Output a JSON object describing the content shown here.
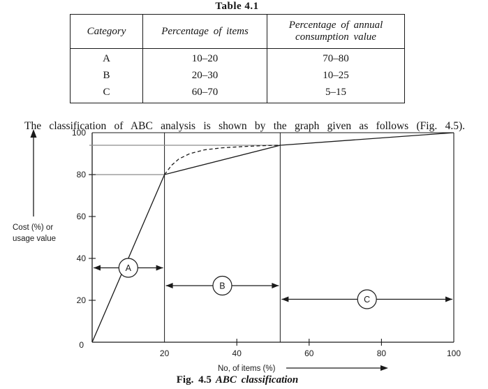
{
  "colors": {
    "ink": "#1a1a1a",
    "guide_gray": "#8c8c8c"
  },
  "table_section": {
    "title": "Table 4.1",
    "headers": [
      "Category",
      "Percentage of items",
      "Percentage of annual consumption value"
    ],
    "rows": [
      [
        "A",
        "10–20",
        "70–80"
      ],
      [
        "B",
        "20–30",
        "10–25"
      ],
      [
        "C",
        "60–70",
        "5–15"
      ]
    ]
  },
  "paragraph": "The classification of ABC analysis is shown by the graph given as follows (Fig. 4.5).",
  "chart_data": {
    "type": "line",
    "title": "",
    "xlabel": "No, of items (%)",
    "ylabel_lines": [
      "Cost (%) or",
      "usage value"
    ],
    "xlim": [
      0,
      100
    ],
    "ylim": [
      0,
      100
    ],
    "x_ticks": [
      0,
      20,
      40,
      60,
      80,
      100
    ],
    "y_ticks": [
      0,
      20,
      40,
      60,
      80,
      100
    ],
    "origin_label": "0",
    "grid": "partial",
    "vertical_guides": [
      20,
      52
    ],
    "horizontal_guides": [
      {
        "y": 94,
        "x_end": 52
      },
      {
        "y": 80,
        "x_end": 20
      }
    ],
    "series": [
      {
        "name": "cumulative-cost-line",
        "style": "solid",
        "points": [
          [
            0,
            0
          ],
          [
            20,
            80
          ],
          [
            52,
            94
          ],
          [
            100,
            100
          ]
        ]
      },
      {
        "name": "cumulative-cost-curve",
        "style": "dashed",
        "points": [
          [
            20,
            80
          ],
          [
            22,
            84.5
          ],
          [
            24,
            87.5
          ],
          [
            27,
            90
          ],
          [
            31,
            91.8
          ],
          [
            36,
            92.8
          ],
          [
            42,
            93.4
          ],
          [
            47,
            93.8
          ],
          [
            52,
            94
          ]
        ]
      }
    ],
    "regions": [
      {
        "label": "A",
        "from": 0,
        "to": 20,
        "arrow_y": 35.5
      },
      {
        "label": "B",
        "from": 20,
        "to": 52,
        "arrow_y": 27
      },
      {
        "label": "C",
        "from": 52,
        "to": 100,
        "arrow_y": 20.5
      }
    ],
    "caption": {
      "fig_label": "Fig. 4.5",
      "fig_title": "ABC classification"
    }
  }
}
